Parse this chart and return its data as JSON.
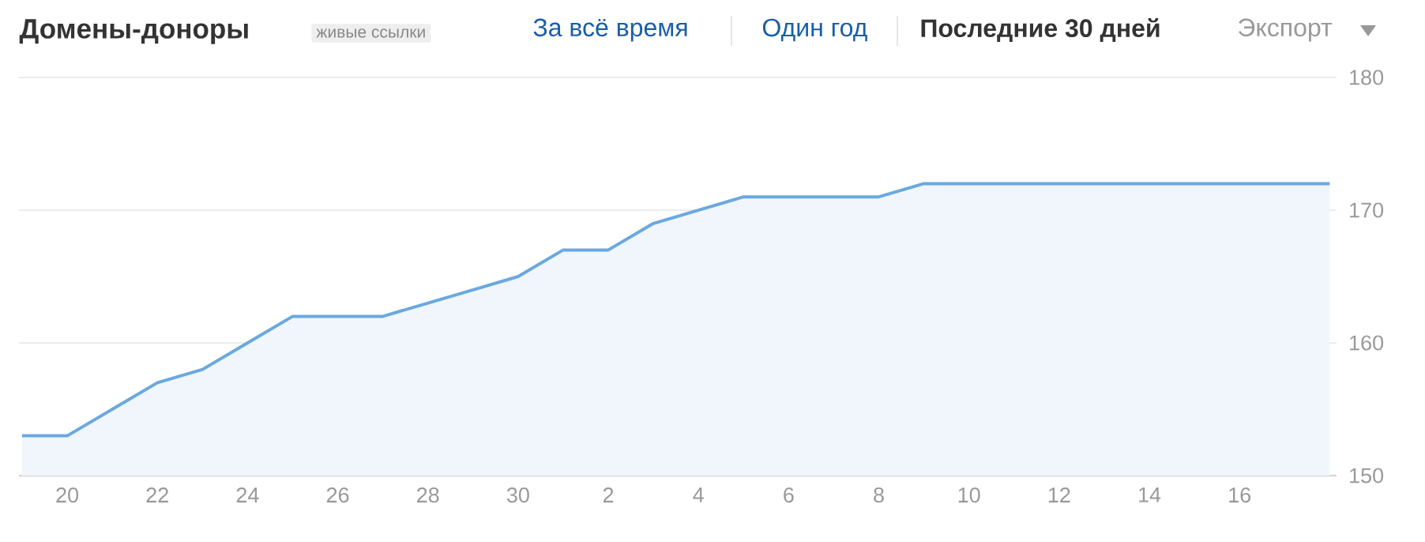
{
  "chart_data": {
    "type": "area",
    "title": "Домены-доноры",
    "subtitle": "живые ссылки",
    "annotations": [
      "За всё время",
      "Один год",
      "Последние 30 дней",
      "Экспорт"
    ],
    "categories": [
      null,
      "20",
      null,
      "22",
      null,
      "24",
      null,
      "26",
      null,
      "28",
      null,
      "30",
      null,
      "2",
      null,
      "4",
      null,
      "6",
      null,
      "8",
      null,
      "10",
      null,
      "12",
      null,
      "14",
      null,
      "16",
      null,
      null
    ],
    "series": [
      {
        "color": "#6aa8e0",
        "values": [
          153,
          153,
          155,
          157,
          158,
          160,
          162,
          162,
          162,
          163,
          164,
          165,
          167,
          167,
          169,
          170,
          171,
          171,
          171,
          171,
          172,
          172,
          172,
          172,
          172,
          172,
          172,
          172,
          172,
          172
        ]
      }
    ],
    "ylim": [
      150,
      180
    ],
    "yticks": [
      150,
      160,
      170,
      180
    ],
    "grid": "y"
  }
}
